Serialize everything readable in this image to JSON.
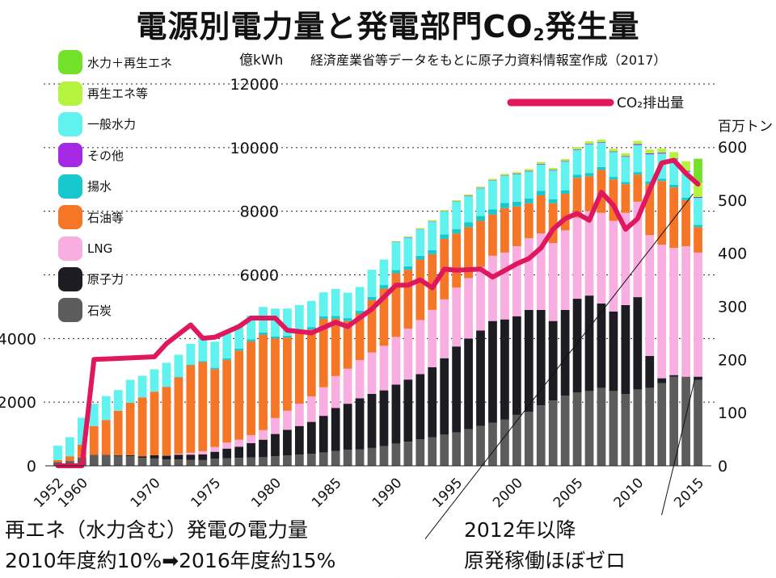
{
  "title": {
    "main": "電源別電力量と発電部門CO",
    "sub": "2",
    "tail": "発生量"
  },
  "left_unit": "億kWh",
  "source": "経済産業省等データをもとに原子力資料情報室作成（2017）",
  "right_unit": "百万トン",
  "co2_legend": "CO₂排出量",
  "notes": {
    "renewables_line1": "再エネ（水力含む）発電の電力量",
    "renewables_line2": "2010年度約10%➡2016年度約15%",
    "nuclear_line1": "2012年以降",
    "nuclear_line2": "原発稼働ほぼゼロ"
  },
  "chart_data": {
    "type": "bar",
    "stacked": true,
    "y_left": {
      "unit": "億kWh",
      "ylim": [
        0,
        12000
      ],
      "ticks": [
        0,
        2000,
        4000,
        6000,
        8000,
        10000,
        12000
      ]
    },
    "y_right": {
      "unit": "百万トン",
      "ylim": [
        0,
        600
      ],
      "ticks": [
        0,
        100,
        200,
        300,
        400,
        500,
        600
      ]
    },
    "x_tick_labels": [
      "1952",
      "1960",
      "1970",
      "1975",
      "1980",
      "1985",
      "1990",
      "1995",
      "2000",
      "2005",
      "2010",
      "2015"
    ],
    "x_tick_years": [
      1952,
      1960,
      1970,
      1975,
      1980,
      1985,
      1990,
      1995,
      2000,
      2005,
      2010,
      2015
    ],
    "categories": [
      1952,
      1955,
      1960,
      1965,
      1966,
      1967,
      1968,
      1969,
      1970,
      1971,
      1972,
      1973,
      1974,
      1975,
      1976,
      1977,
      1978,
      1979,
      1980,
      1981,
      1982,
      1983,
      1984,
      1985,
      1986,
      1987,
      1988,
      1989,
      1990,
      1991,
      1992,
      1993,
      1994,
      1995,
      1996,
      1997,
      1998,
      1999,
      2000,
      2001,
      2002,
      2003,
      2004,
      2005,
      2006,
      2007,
      2008,
      2009,
      2010,
      2011,
      2012,
      2013,
      2014,
      2015
    ],
    "series": [
      {
        "name": "石炭",
        "color": "#5c5c5c",
        "values": [
          120,
          150,
          260,
          350,
          330,
          310,
          300,
          250,
          230,
          200,
          200,
          190,
          180,
          220,
          240,
          250,
          260,
          270,
          300,
          330,
          350,
          380,
          420,
          470,
          500,
          520,
          560,
          620,
          700,
          760,
          830,
          900,
          980,
          1050,
          1150,
          1250,
          1350,
          1450,
          1600,
          1700,
          1900,
          2050,
          2200,
          2300,
          2350,
          2450,
          2350,
          2250,
          2400,
          2450,
          2600,
          2800,
          2800,
          2700
        ]
      },
      {
        "name": "原子力",
        "color": "#1c1c22",
        "values": [
          0,
          0,
          0,
          0,
          10,
          20,
          30,
          50,
          100,
          120,
          150,
          160,
          180,
          220,
          300,
          350,
          450,
          550,
          700,
          800,
          900,
          1000,
          1150,
          1350,
          1450,
          1600,
          1700,
          1750,
          1850,
          1950,
          2050,
          2200,
          2400,
          2700,
          2850,
          3000,
          3200,
          3150,
          3100,
          3200,
          3000,
          2500,
          2700,
          2950,
          3000,
          2650,
          2500,
          2800,
          2900,
          1000,
          150,
          50,
          0,
          100
        ]
      },
      {
        "name": "LNG",
        "color": "#f8aee0",
        "values": [
          0,
          0,
          0,
          0,
          0,
          0,
          0,
          0,
          0,
          10,
          30,
          60,
          100,
          150,
          190,
          220,
          250,
          300,
          500,
          600,
          700,
          800,
          900,
          1000,
          1100,
          1200,
          1300,
          1400,
          1500,
          1600,
          1700,
          1800,
          1850,
          1850,
          1900,
          2000,
          2050,
          2100,
          2200,
          2250,
          2400,
          2450,
          2500,
          2550,
          2650,
          2850,
          2850,
          2900,
          3000,
          3800,
          4200,
          4000,
          4100,
          3900
        ]
      },
      {
        "name": "石油等",
        "color": "#f57626",
        "values": [
          60,
          150,
          400,
          900,
          1100,
          1400,
          1650,
          1850,
          2000,
          2150,
          2400,
          2750,
          2800,
          2450,
          2600,
          2800,
          2950,
          3000,
          2500,
          2300,
          2200,
          2100,
          2150,
          1800,
          1500,
          1450,
          1650,
          1800,
          2000,
          1850,
          1900,
          1750,
          1900,
          1700,
          1600,
          1450,
          1300,
          1400,
          1250,
          1100,
          1200,
          1250,
          1150,
          1250,
          1100,
          1350,
          1300,
          900,
          850,
          1600,
          2000,
          1900,
          1450,
          800
        ]
      },
      {
        "name": "揚水",
        "color": "#17c8cc",
        "values": [
          0,
          0,
          0,
          0,
          0,
          0,
          0,
          0,
          0,
          5,
          10,
          20,
          30,
          40,
          50,
          60,
          60,
          70,
          60,
          60,
          70,
          80,
          80,
          90,
          90,
          100,
          100,
          110,
          100,
          110,
          120,
          130,
          140,
          140,
          150,
          150,
          160,
          160,
          150,
          150,
          140,
          130,
          110,
          100,
          100,
          90,
          80,
          70,
          80,
          90,
          70,
          80,
          80,
          70
        ]
      },
      {
        "name": "一般水力",
        "color": "#5ff2ef",
        "values": [
          450,
          600,
          850,
          700,
          750,
          650,
          720,
          680,
          700,
          750,
          700,
          650,
          800,
          820,
          820,
          750,
          750,
          800,
          880,
          850,
          830,
          820,
          750,
          850,
          800,
          750,
          850,
          800,
          880,
          900,
          830,
          900,
          720,
          860,
          820,
          870,
          900,
          850,
          860,
          850,
          830,
          900,
          900,
          780,
          900,
          760,
          780,
          790,
          850,
          850,
          790,
          800,
          810,
          850
        ]
      },
      {
        "name": "その他",
        "color": "#a529e4",
        "values": [
          0,
          0,
          0,
          0,
          0,
          0,
          0,
          0,
          0,
          0,
          0,
          0,
          0,
          0,
          0,
          0,
          0,
          0,
          0,
          0,
          0,
          0,
          0,
          0,
          0,
          0,
          0,
          0,
          10,
          10,
          10,
          10,
          10,
          10,
          15,
          15,
          15,
          15,
          20,
          20,
          20,
          20,
          20,
          20,
          20,
          20,
          20,
          20,
          30,
          30,
          30,
          30,
          30,
          30
        ]
      },
      {
        "name": "再生エネ等",
        "color": "#b4f43f",
        "values": [
          0,
          0,
          0,
          0,
          0,
          0,
          0,
          0,
          0,
          0,
          0,
          0,
          0,
          0,
          0,
          0,
          0,
          0,
          0,
          0,
          0,
          0,
          0,
          0,
          0,
          0,
          0,
          0,
          20,
          25,
          30,
          30,
          35,
          35,
          40,
          40,
          45,
          50,
          50,
          55,
          60,
          60,
          65,
          70,
          80,
          80,
          85,
          90,
          100,
          120,
          130,
          200,
          300,
          450
        ]
      },
      {
        "name": "水力＋再生エネ",
        "color": "#73e02a",
        "values": [
          0,
          0,
          0,
          0,
          0,
          0,
          0,
          0,
          0,
          0,
          0,
          0,
          0,
          0,
          0,
          0,
          0,
          0,
          0,
          0,
          0,
          0,
          0,
          0,
          0,
          0,
          0,
          0,
          0,
          0,
          0,
          0,
          0,
          0,
          0,
          0,
          0,
          0,
          0,
          0,
          0,
          0,
          0,
          0,
          0,
          0,
          0,
          0,
          0,
          0,
          0,
          0,
          0,
          750
        ]
      }
    ],
    "co2_line": {
      "name": "CO₂排出量",
      "color": "#e0175d",
      "axis": "right",
      "x": [
        1952,
        1955,
        1960,
        1965,
        1970,
        1971,
        1973,
        1974,
        1975,
        1977,
        1978,
        1980,
        1981,
        1983,
        1985,
        1986,
        1988,
        1990,
        1991,
        1992,
        1993,
        1994,
        1995,
        1997,
        1998,
        2000,
        2001,
        2002,
        2003,
        2004,
        2005,
        2006,
        2007,
        2008,
        2009,
        2010,
        2011,
        2012,
        2013,
        2014,
        2015
      ],
      "y": [
        0,
        0,
        0,
        200,
        205,
        230,
        265,
        240,
        242,
        262,
        278,
        278,
        255,
        250,
        270,
        262,
        295,
        340,
        340,
        350,
        335,
        370,
        368,
        370,
        355,
        380,
        390,
        410,
        445,
        465,
        475,
        462,
        515,
        490,
        445,
        465,
        520,
        570,
        575,
        550,
        530
      ]
    },
    "legend_order": [
      "水力＋再生エネ",
      "再生エネ等",
      "一般水力",
      "その他",
      "揚水",
      "石油等",
      "LNG",
      "原子力",
      "石炭"
    ],
    "legend_placement": "top-left",
    "grid": "dotted horizontal"
  }
}
